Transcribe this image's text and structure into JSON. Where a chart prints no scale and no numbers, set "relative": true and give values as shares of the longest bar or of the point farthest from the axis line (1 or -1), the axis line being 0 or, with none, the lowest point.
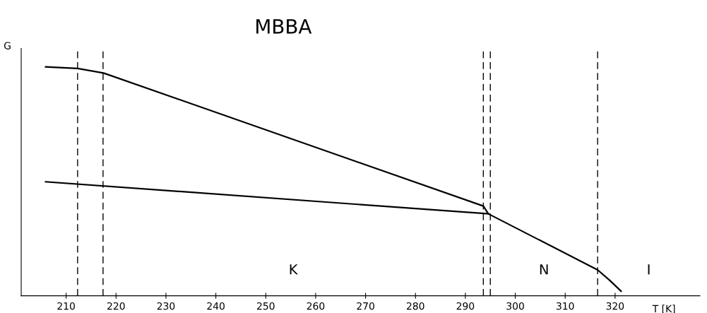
{
  "chart_data": {
    "type": "line",
    "title": "MBBA",
    "xlabel": "T [K]",
    "ylabel": "G",
    "relative": true,
    "grid": false,
    "legend": false,
    "marker": "none",
    "line_style": "solid",
    "xlim": [
      201,
      337
    ],
    "xticks": [
      210,
      220,
      230,
      240,
      250,
      260,
      270,
      280,
      290,
      300,
      310,
      320
    ],
    "tick_labels": "x",
    "series": [
      {
        "color": "#000000",
        "x": [
          205.9,
          212.3,
          217.5,
          293.6,
          294.6,
          316.5,
          318.9,
          321.2
        ],
        "values": [
          1.0,
          0.993,
          0.973,
          0.392,
          0.358,
          0.113,
          0.068,
          0.02
        ]
      },
      {
        "color": "#000000",
        "x": [
          205.9,
          294.6
        ],
        "values": [
          0.498,
          0.358
        ]
      }
    ],
    "ref_lines": [
      {
        "axis": "x",
        "value": 212.3,
        "line_style": "dashed",
        "color": "#000000"
      },
      {
        "axis": "x",
        "value": 217.4,
        "line_style": "dashed",
        "color": "#000000"
      },
      {
        "axis": "x",
        "value": 293.6,
        "line_style": "dashed",
        "color": "#000000"
      },
      {
        "axis": "x",
        "value": 295.0,
        "line_style": "dashed",
        "color": "#000000"
      },
      {
        "axis": "x",
        "value": 316.5,
        "line_style": "dashed",
        "color": "#000000"
      }
    ],
    "annotations": [
      "K",
      "N",
      "I"
    ]
  }
}
